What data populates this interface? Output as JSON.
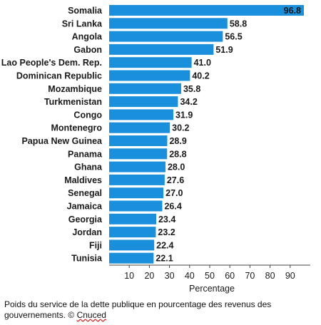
{
  "chart_data": {
    "type": "bar",
    "orientation": "horizontal",
    "categories": [
      "Somalia",
      "Sri Lanka",
      "Angola",
      "Gabon",
      "Lao People's Dem. Rep.",
      "Dominican Republic",
      "Mozambique",
      "Turkmenistan",
      "Congo",
      "Montenegro",
      "Papua New Guinea",
      "Panama",
      "Ghana",
      "Maldives",
      "Senegal",
      "Jamaica",
      "Georgia",
      "Jordan",
      "Fiji",
      "Tunisia"
    ],
    "values": [
      96.8,
      58.8,
      56.5,
      51.9,
      41.0,
      40.2,
      35.8,
      34.2,
      31.9,
      30.2,
      28.9,
      28.8,
      28.0,
      27.6,
      27.0,
      26.4,
      23.4,
      23.2,
      22.4,
      22.1
    ],
    "value_labels": [
      "96.8",
      "58.8",
      "56.5",
      "51.9",
      "41.0",
      "40.2",
      "35.8",
      "34.2",
      "31.9",
      "30.2",
      "28.9",
      "28.8",
      "28.0",
      "27.6",
      "27.0",
      "26.4",
      "23.4",
      "23.2",
      "22.4",
      "22.1"
    ],
    "xticks": [
      "10",
      "20",
      "30",
      "40",
      "50",
      "60",
      "70",
      "80",
      "90"
    ],
    "xlabel": "Percentage",
    "xlim": [
      0,
      100
    ],
    "grid": false,
    "bar_color": "#1a8fdb"
  },
  "caption": {
    "text": "Poids du service de la dette publique en pourcentage des revenus des gouvernements. © ",
    "source": "Cnuced"
  }
}
